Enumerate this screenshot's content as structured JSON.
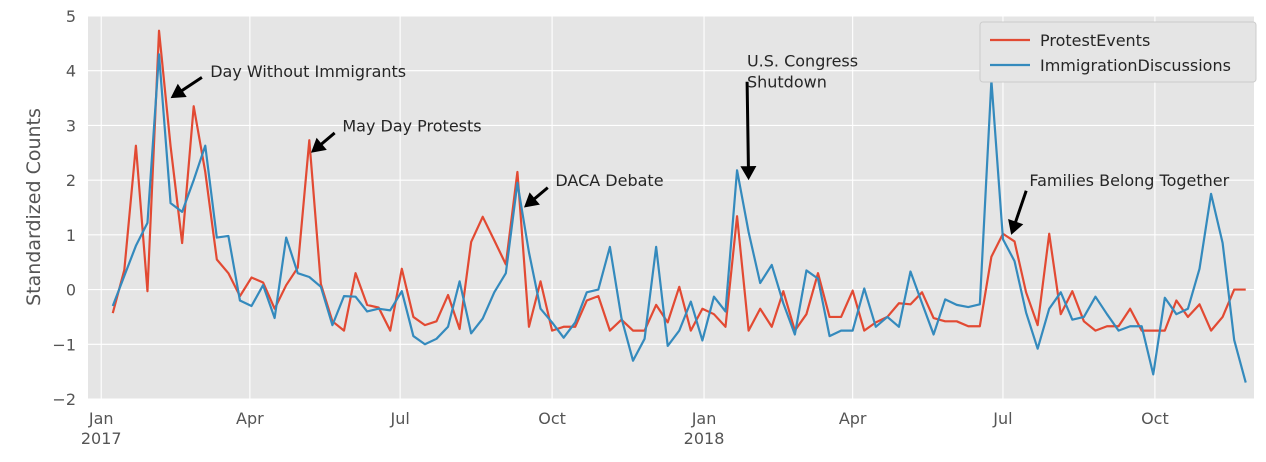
{
  "chart_data": {
    "type": "line",
    "title": "",
    "xlabel": "",
    "ylabel": "Standardized Counts",
    "xlim": [
      "2016-12-24",
      "2018-11-30"
    ],
    "ylim": [
      -2,
      5
    ],
    "grid": true,
    "legend_position": "top-right",
    "y_ticks": [
      "−2",
      "−1",
      "0",
      "1",
      "2",
      "3",
      "4",
      "5"
    ],
    "x_ticks": [
      {
        "date": "2017-01-01",
        "label": "Jan",
        "sub": "2017"
      },
      {
        "date": "2017-04-01",
        "label": "Apr",
        "sub": ""
      },
      {
        "date": "2017-07-01",
        "label": "Jul",
        "sub": ""
      },
      {
        "date": "2017-10-01",
        "label": "Oct",
        "sub": ""
      },
      {
        "date": "2018-01-01",
        "label": "Jan",
        "sub": "2018"
      },
      {
        "date": "2018-04-01",
        "label": "Apr",
        "sub": ""
      },
      {
        "date": "2018-07-01",
        "label": "Jul",
        "sub": ""
      },
      {
        "date": "2018-10-01",
        "label": "Oct",
        "sub": ""
      }
    ],
    "series": [
      {
        "name": "ProtestEvents",
        "color": "#e24a33",
        "points": [
          [
            "2017-01-08",
            -0.43
          ],
          [
            "2017-01-15",
            0.36
          ],
          [
            "2017-01-22",
            2.63
          ],
          [
            "2017-01-29",
            -0.03
          ],
          [
            "2017-02-05",
            4.73
          ],
          [
            "2017-02-12",
            2.62
          ],
          [
            "2017-02-19",
            0.85
          ],
          [
            "2017-02-26",
            3.35
          ],
          [
            "2017-03-05",
            2.15
          ],
          [
            "2017-03-12",
            0.55
          ],
          [
            "2017-03-19",
            0.3
          ],
          [
            "2017-03-26",
            -0.12
          ],
          [
            "2017-04-02",
            0.22
          ],
          [
            "2017-04-09",
            0.13
          ],
          [
            "2017-04-16",
            -0.35
          ],
          [
            "2017-04-23",
            0.08
          ],
          [
            "2017-04-30",
            0.4
          ],
          [
            "2017-05-07",
            2.73
          ],
          [
            "2017-05-14",
            0.1
          ],
          [
            "2017-05-21",
            -0.58
          ],
          [
            "2017-05-28",
            -0.75
          ],
          [
            "2017-06-04",
            0.3
          ],
          [
            "2017-06-11",
            -0.28
          ],
          [
            "2017-06-18",
            -0.33
          ],
          [
            "2017-06-25",
            -0.75
          ],
          [
            "2017-07-02",
            0.38
          ],
          [
            "2017-07-09",
            -0.5
          ],
          [
            "2017-07-16",
            -0.65
          ],
          [
            "2017-07-23",
            -0.58
          ],
          [
            "2017-07-30",
            -0.1
          ],
          [
            "2017-08-06",
            -0.72
          ],
          [
            "2017-08-13",
            0.87
          ],
          [
            "2017-08-20",
            1.33
          ],
          [
            "2017-08-27",
            0.9
          ],
          [
            "2017-09-03",
            0.46
          ],
          [
            "2017-09-10",
            2.15
          ],
          [
            "2017-09-17",
            -0.68
          ],
          [
            "2017-09-24",
            0.15
          ],
          [
            "2017-10-01",
            -0.75
          ],
          [
            "2017-10-08",
            -0.68
          ],
          [
            "2017-10-15",
            -0.68
          ],
          [
            "2017-10-22",
            -0.2
          ],
          [
            "2017-10-29",
            -0.12
          ],
          [
            "2017-11-05",
            -0.75
          ],
          [
            "2017-11-12",
            -0.55
          ],
          [
            "2017-11-19",
            -0.75
          ],
          [
            "2017-11-26",
            -0.75
          ],
          [
            "2017-12-03",
            -0.28
          ],
          [
            "2017-12-10",
            -0.6
          ],
          [
            "2017-12-17",
            0.05
          ],
          [
            "2017-12-24",
            -0.75
          ],
          [
            "2017-12-31",
            -0.35
          ],
          [
            "2018-01-07",
            -0.45
          ],
          [
            "2018-01-14",
            -0.68
          ],
          [
            "2018-01-21",
            1.34
          ],
          [
            "2018-01-28",
            -0.75
          ],
          [
            "2018-02-04",
            -0.35
          ],
          [
            "2018-02-11",
            -0.68
          ],
          [
            "2018-02-18",
            -0.03
          ],
          [
            "2018-02-25",
            -0.75
          ],
          [
            "2018-03-04",
            -0.45
          ],
          [
            "2018-03-11",
            0.3
          ],
          [
            "2018-03-18",
            -0.5
          ],
          [
            "2018-03-25",
            -0.5
          ],
          [
            "2018-04-01",
            -0.02
          ],
          [
            "2018-04-08",
            -0.75
          ],
          [
            "2018-04-15",
            -0.6
          ],
          [
            "2018-04-22",
            -0.5
          ],
          [
            "2018-04-29",
            -0.25
          ],
          [
            "2018-05-06",
            -0.27
          ],
          [
            "2018-05-13",
            -0.05
          ],
          [
            "2018-05-20",
            -0.52
          ],
          [
            "2018-05-27",
            -0.58
          ],
          [
            "2018-06-03",
            -0.58
          ],
          [
            "2018-06-10",
            -0.67
          ],
          [
            "2018-06-17",
            -0.67
          ],
          [
            "2018-06-24",
            0.6
          ],
          [
            "2018-07-01",
            1.02
          ],
          [
            "2018-07-08",
            0.88
          ],
          [
            "2018-07-15",
            -0.05
          ],
          [
            "2018-07-22",
            -0.65
          ],
          [
            "2018-07-29",
            1.02
          ],
          [
            "2018-08-05",
            -0.45
          ],
          [
            "2018-08-12",
            -0.03
          ],
          [
            "2018-08-19",
            -0.58
          ],
          [
            "2018-08-26",
            -0.75
          ],
          [
            "2018-09-02",
            -0.67
          ],
          [
            "2018-09-09",
            -0.67
          ],
          [
            "2018-09-16",
            -0.35
          ],
          [
            "2018-09-23",
            -0.75
          ],
          [
            "2018-09-30",
            -0.75
          ],
          [
            "2018-10-07",
            -0.75
          ],
          [
            "2018-10-14",
            -0.2
          ],
          [
            "2018-10-21",
            -0.5
          ],
          [
            "2018-10-28",
            -0.27
          ],
          [
            "2018-11-04",
            -0.75
          ],
          [
            "2018-11-11",
            -0.5
          ],
          [
            "2018-11-18",
            0.0
          ],
          [
            "2018-11-25",
            0.0
          ]
        ]
      },
      {
        "name": "ImmigrationDiscussions",
        "color": "#348abd",
        "points": [
          [
            "2017-01-08",
            -0.3
          ],
          [
            "2017-01-15",
            0.25
          ],
          [
            "2017-01-22",
            0.8
          ],
          [
            "2017-01-29",
            1.22
          ],
          [
            "2017-02-05",
            4.3
          ],
          [
            "2017-02-12",
            1.58
          ],
          [
            "2017-02-19",
            1.42
          ],
          [
            "2017-02-26",
            2.0
          ],
          [
            "2017-03-05",
            2.63
          ],
          [
            "2017-03-12",
            0.95
          ],
          [
            "2017-03-19",
            0.98
          ],
          [
            "2017-03-26",
            -0.2
          ],
          [
            "2017-04-02",
            -0.3
          ],
          [
            "2017-04-09",
            0.08
          ],
          [
            "2017-04-16",
            -0.52
          ],
          [
            "2017-04-23",
            0.95
          ],
          [
            "2017-04-30",
            0.3
          ],
          [
            "2017-05-07",
            0.23
          ],
          [
            "2017-05-14",
            0.05
          ],
          [
            "2017-05-21",
            -0.65
          ],
          [
            "2017-05-28",
            -0.12
          ],
          [
            "2017-06-04",
            -0.13
          ],
          [
            "2017-06-11",
            -0.4
          ],
          [
            "2017-06-18",
            -0.35
          ],
          [
            "2017-06-25",
            -0.38
          ],
          [
            "2017-07-02",
            -0.03
          ],
          [
            "2017-07-09",
            -0.85
          ],
          [
            "2017-07-16",
            -1.0
          ],
          [
            "2017-07-23",
            -0.9
          ],
          [
            "2017-07-30",
            -0.68
          ],
          [
            "2017-08-06",
            0.15
          ],
          [
            "2017-08-13",
            -0.8
          ],
          [
            "2017-08-20",
            -0.53
          ],
          [
            "2017-08-27",
            -0.05
          ],
          [
            "2017-09-03",
            0.3
          ],
          [
            "2017-09-10",
            1.95
          ],
          [
            "2017-09-17",
            0.68
          ],
          [
            "2017-09-24",
            -0.35
          ],
          [
            "2017-10-01",
            -0.6
          ],
          [
            "2017-10-08",
            -0.88
          ],
          [
            "2017-10-15",
            -0.6
          ],
          [
            "2017-10-22",
            -0.05
          ],
          [
            "2017-10-29",
            0.0
          ],
          [
            "2017-11-05",
            0.78
          ],
          [
            "2017-11-12",
            -0.52
          ],
          [
            "2017-11-19",
            -1.3
          ],
          [
            "2017-11-26",
            -0.9
          ],
          [
            "2017-12-03",
            0.78
          ],
          [
            "2017-12-10",
            -1.03
          ],
          [
            "2017-12-17",
            -0.75
          ],
          [
            "2017-12-24",
            -0.22
          ],
          [
            "2017-12-31",
            -0.93
          ],
          [
            "2018-01-07",
            -0.13
          ],
          [
            "2018-01-14",
            -0.4
          ],
          [
            "2018-01-21",
            2.18
          ],
          [
            "2018-01-28",
            1.05
          ],
          [
            "2018-02-04",
            0.12
          ],
          [
            "2018-02-11",
            0.45
          ],
          [
            "2018-02-18",
            -0.25
          ],
          [
            "2018-02-25",
            -0.82
          ],
          [
            "2018-03-04",
            0.35
          ],
          [
            "2018-03-11",
            0.2
          ],
          [
            "2018-03-18",
            -0.85
          ],
          [
            "2018-03-25",
            -0.75
          ],
          [
            "2018-04-01",
            -0.75
          ],
          [
            "2018-04-08",
            0.02
          ],
          [
            "2018-04-15",
            -0.68
          ],
          [
            "2018-04-22",
            -0.5
          ],
          [
            "2018-04-29",
            -0.68
          ],
          [
            "2018-05-06",
            0.33
          ],
          [
            "2018-05-13",
            -0.25
          ],
          [
            "2018-05-20",
            -0.82
          ],
          [
            "2018-05-27",
            -0.18
          ],
          [
            "2018-06-03",
            -0.28
          ],
          [
            "2018-06-10",
            -0.32
          ],
          [
            "2018-06-17",
            -0.27
          ],
          [
            "2018-06-24",
            3.82
          ],
          [
            "2018-07-01",
            0.92
          ],
          [
            "2018-07-08",
            0.52
          ],
          [
            "2018-07-15",
            -0.42
          ],
          [
            "2018-07-22",
            -1.08
          ],
          [
            "2018-07-29",
            -0.35
          ],
          [
            "2018-08-05",
            -0.05
          ],
          [
            "2018-08-12",
            -0.55
          ],
          [
            "2018-08-19",
            -0.5
          ],
          [
            "2018-08-26",
            -0.13
          ],
          [
            "2018-09-02",
            -0.45
          ],
          [
            "2018-09-09",
            -0.75
          ],
          [
            "2018-09-16",
            -0.67
          ],
          [
            "2018-09-23",
            -0.67
          ],
          [
            "2018-09-30",
            -1.55
          ],
          [
            "2018-10-07",
            -0.15
          ],
          [
            "2018-10-14",
            -0.45
          ],
          [
            "2018-10-21",
            -0.35
          ],
          [
            "2018-10-28",
            0.38
          ],
          [
            "2018-11-04",
            1.75
          ],
          [
            "2018-11-11",
            0.85
          ],
          [
            "2018-11-18",
            -0.92
          ],
          [
            "2018-11-25",
            -1.7
          ]
        ]
      }
    ],
    "annotations": [
      {
        "text": "Day Without Immigrants",
        "lines": [
          "Day Without Immigrants"
        ],
        "xy": [
          "2017-02-12",
          3.5
        ],
        "xytext": [
          "2017-03-08",
          3.98
        ]
      },
      {
        "text": "May Day Protests",
        "lines": [
          "May Day Protests"
        ],
        "xy": [
          "2017-05-08",
          2.5
        ],
        "xytext": [
          "2017-05-27",
          2.98
        ]
      },
      {
        "text": "DACA Debate",
        "lines": [
          "DACA Debate"
        ],
        "xy": [
          "2017-09-14",
          1.5
        ],
        "xytext": [
          "2017-10-03",
          1.98
        ]
      },
      {
        "text": "U.S. Congress\nShutdown",
        "lines": [
          "U.S. Congress",
          " Shutdown"
        ],
        "xy": [
          "2018-01-28",
          2.0
        ],
        "xytext": [
          "2018-01-27",
          3.98
        ]
      },
      {
        "text": "Families Belong Together",
        "lines": [
          "Families Belong Together"
        ],
        "xy": [
          "2018-07-06",
          1.0
        ],
        "xytext": [
          "2018-07-17",
          1.98
        ]
      }
    ]
  }
}
